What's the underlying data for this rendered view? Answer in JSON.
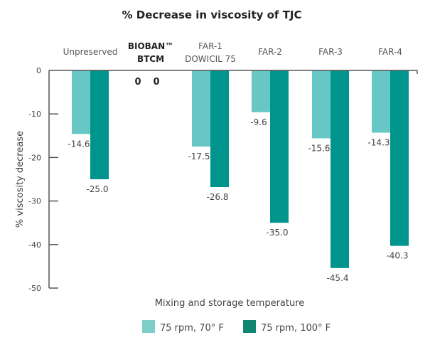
{
  "chart_data": {
    "type": "bar",
    "title": "% Decrease in viscosity of TJC",
    "xlabel": "Mixing and storage temperature",
    "ylabel": "% viscosity decrease",
    "ylim": [
      -50,
      0
    ],
    "yticks": [
      0,
      -10,
      -20,
      -30,
      -40,
      -50
    ],
    "ytick_labels": [
      "0",
      "-10",
      "-20",
      "-30",
      "-40",
      "-50"
    ],
    "x_axis_position": "top",
    "grid": false,
    "legend_position": "bottom-center",
    "categories": [
      {
        "lines": [
          "Unpreserved"
        ],
        "bold": false
      },
      {
        "lines": [
          "BIOBAN™",
          "BTCM"
        ],
        "bold": true
      },
      {
        "lines": [
          "FAR-1",
          "DOWICIL 75"
        ],
        "bold": false
      },
      {
        "lines": [
          "FAR-2"
        ],
        "bold": false
      },
      {
        "lines": [
          "FAR-3"
        ],
        "bold": false
      },
      {
        "lines": [
          "FAR-4"
        ],
        "bold": false
      }
    ],
    "series": [
      {
        "name": "75 rpm, 70° F",
        "color": "#66c7c4",
        "values": [
          -14.6,
          0,
          -17.5,
          -9.6,
          -15.6,
          -14.3
        ],
        "labels": [
          "-14.6",
          "0",
          "-17.5",
          "-9.6",
          "-15.6",
          "-14.3"
        ]
      },
      {
        "name": "75 rpm, 100° F",
        "color": "#00958c",
        "values": [
          -25.0,
          0,
          -26.8,
          -35.0,
          -45.4,
          -40.3
        ],
        "labels": [
          "-25.0",
          "0",
          "-26.8",
          "-35.0",
          "-45.4",
          "-40.3"
        ]
      }
    ]
  }
}
